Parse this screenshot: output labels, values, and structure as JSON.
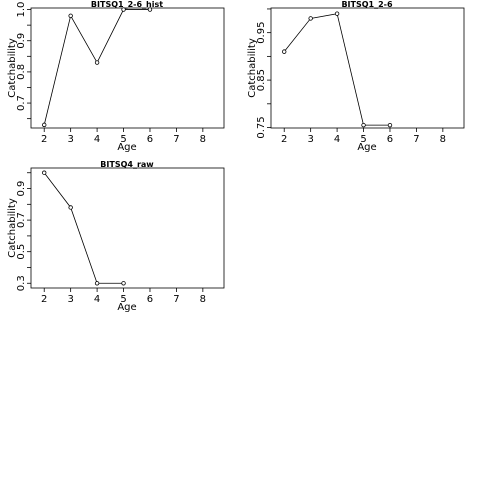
{
  "chart_data": [
    {
      "type": "line",
      "title": "BITSQ1_2-6_hist",
      "xlabel": "Age",
      "ylabel": "Catchability",
      "xticks": [
        2,
        3,
        4,
        5,
        6,
        7,
        8
      ],
      "yticks": [
        "0.7",
        "0.8",
        "0.9",
        "1.0"
      ],
      "xlim": [
        1.5,
        8.8
      ],
      "ylim": [
        0.62,
        1.005
      ],
      "points": [
        {
          "x": 2,
          "y": 0.63
        },
        {
          "x": 3,
          "y": 0.98
        },
        {
          "x": 4,
          "y": 0.83
        },
        {
          "x": 5,
          "y": 1.0
        },
        {
          "x": 6,
          "y": 1.0
        }
      ]
    },
    {
      "type": "line",
      "title": "BITSQ1_2-6",
      "xlabel": "Age",
      "ylabel": "Catchability",
      "xticks": [
        2,
        3,
        4,
        5,
        6,
        7,
        8
      ],
      "yticks": [
        "0.75",
        "0.85",
        "0.95"
      ],
      "xlim": [
        1.5,
        8.8
      ],
      "ylim": [
        0.749,
        1.002
      ],
      "points": [
        {
          "x": 2,
          "y": 0.91
        },
        {
          "x": 3,
          "y": 0.98
        },
        {
          "x": 4,
          "y": 0.99
        },
        {
          "x": 5,
          "y": 0.755
        },
        {
          "x": 6,
          "y": 0.755
        }
      ]
    },
    {
      "type": "line",
      "title": "BITSQ4_raw",
      "xlabel": "Age",
      "ylabel": "Catchability",
      "xticks": [
        2,
        3,
        4,
        5,
        6,
        7,
        8
      ],
      "yticks": [
        "0.3",
        "0.5",
        "0.7",
        "0.9"
      ],
      "xlim": [
        1.5,
        8.8
      ],
      "ylim": [
        0.27,
        1.03
      ],
      "points": [
        {
          "x": 2,
          "y": 1.0
        },
        {
          "x": 3,
          "y": 0.78
        },
        {
          "x": 4,
          "y": 0.3
        },
        {
          "x": 5,
          "y": 0.3
        }
      ]
    }
  ]
}
